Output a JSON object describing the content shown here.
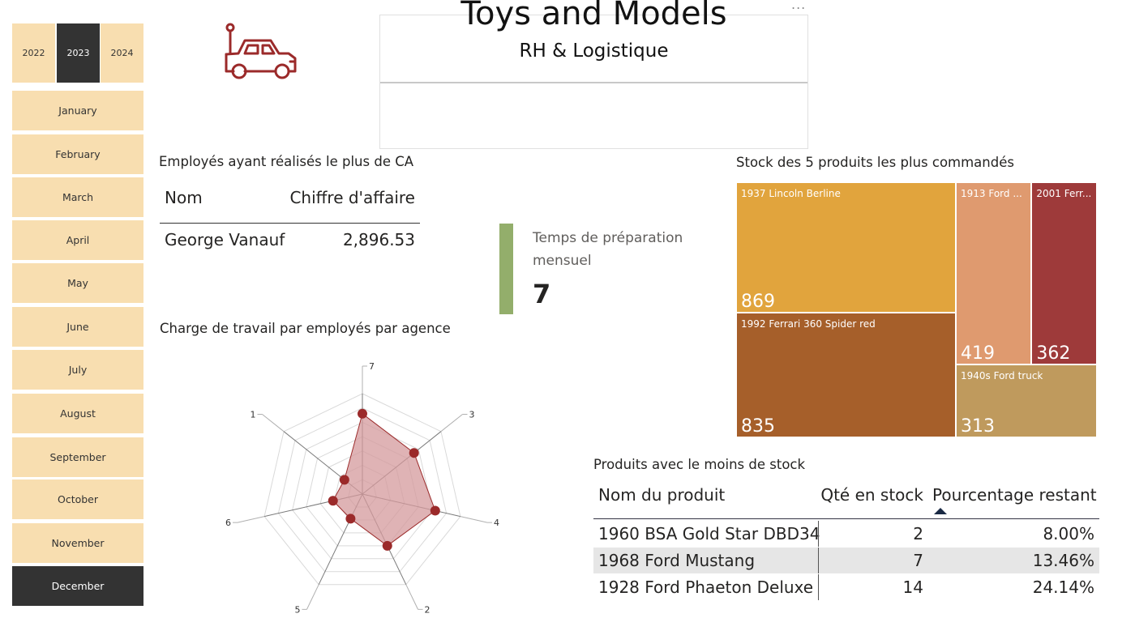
{
  "years": [
    {
      "label": "2022",
      "selected": false
    },
    {
      "label": "2023",
      "selected": true
    },
    {
      "label": "2024",
      "selected": false
    }
  ],
  "months": [
    {
      "label": "January",
      "selected": false
    },
    {
      "label": "February",
      "selected": false
    },
    {
      "label": "March",
      "selected": false
    },
    {
      "label": "April",
      "selected": false
    },
    {
      "label": "May",
      "selected": false
    },
    {
      "label": "June",
      "selected": false
    },
    {
      "label": "July",
      "selected": false
    },
    {
      "label": "August",
      "selected": false
    },
    {
      "label": "September",
      "selected": false
    },
    {
      "label": "October",
      "selected": false
    },
    {
      "label": "November",
      "selected": false
    },
    {
      "label": "December",
      "selected": true
    }
  ],
  "header": {
    "title": "Toys and Models",
    "subtitle": "RH & Logistique",
    "more_options": "...",
    "logo_icon": "toy-car-icon",
    "accent_color": "#9b2a2a"
  },
  "employees_table": {
    "title": "Employés ayant réalisés le plus de CA",
    "columns": [
      "Nom",
      "Chiffre d'affaire"
    ],
    "rows": [
      [
        "George Vanauf",
        "2,896.53"
      ]
    ]
  },
  "kpi": {
    "label": "Temps de préparation mensuel",
    "value": "7",
    "bar_color": "#93ae6b"
  },
  "products_table": {
    "title": "Produits avec le moins de stock",
    "columns": [
      "Nom du produit",
      "Qté en stock",
      "Pourcentage restant"
    ],
    "sorted_column": "Pourcentage restant",
    "rows": [
      [
        "1960 BSA Gold Star DBD34",
        "2",
        "8.00%"
      ],
      [
        "1968 Ford Mustang",
        "7",
        "13.46%"
      ],
      [
        "1928 Ford Phaeton Deluxe",
        "14",
        "24.14%"
      ]
    ]
  },
  "chart_data": [
    {
      "type": "treemap",
      "title": "Stock des 5 produits les plus commandés",
      "items": [
        {
          "label": "1937 Lincoln Berline",
          "value": 869,
          "color": "#e1a43d"
        },
        {
          "label": "1992 Ferrari 360 Spider red",
          "value": 835,
          "color": "#a65f2a"
        },
        {
          "label": "1913 Ford ...",
          "value": 419,
          "color": "#df9a6f"
        },
        {
          "label": "2001 Ferr...",
          "value": 362,
          "color": "#9e3a3a"
        },
        {
          "label": "1940s Ford truck",
          "value": 313,
          "color": "#bf9a5d"
        }
      ]
    },
    {
      "type": "radar",
      "title": "Charge de travail par employés par agence",
      "categories": [
        "7",
        "3",
        "4",
        "2",
        "5",
        "6",
        "1"
      ],
      "values": [
        5.6,
        4.6,
        5.2,
        4.0,
        1.9,
        2.1,
        1.6
      ],
      "rmax": 7,
      "grid_levels": 7,
      "series_color": "#9b2a2a",
      "fill_color": "#d49a9c"
    }
  ]
}
